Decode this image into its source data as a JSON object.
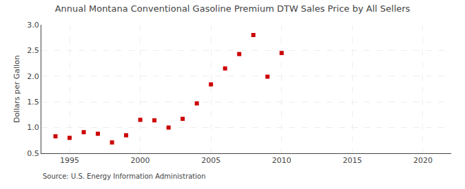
{
  "chart_data": {
    "type": "scatter",
    "title": "Annual Montana Conventional Gasoline Premium DTW Sales Price by All Sellers",
    "ylabel": "Dollars per Gallon",
    "annotations": [
      "Source: U.S. Energy Information Administration"
    ],
    "x": [
      1994,
      1995,
      1996,
      1997,
      1998,
      1999,
      2000,
      2001,
      2002,
      2003,
      2004,
      2005,
      2006,
      2007,
      2008,
      2009,
      2010
    ],
    "values": [
      0.83,
      0.8,
      0.91,
      0.88,
      0.71,
      0.85,
      1.15,
      1.14,
      1.0,
      1.17,
      1.47,
      1.84,
      2.15,
      2.43,
      2.8,
      1.99,
      2.45
    ],
    "color": "#cc0000",
    "marker": "square",
    "xlim": [
      1993,
      2022
    ],
    "ylim": [
      0.5,
      3.0
    ],
    "xticks": [
      1995,
      2000,
      2005,
      2010,
      2015,
      2020
    ],
    "yticks": [
      0.5,
      {
        "value": 1.0,
        "label": "1.0"
      },
      1.5,
      {
        "value": 2.0,
        "label": "2.0"
      },
      2.5,
      {
        "value": 3.0,
        "label": "3.0"
      }
    ],
    "grid": true
  }
}
